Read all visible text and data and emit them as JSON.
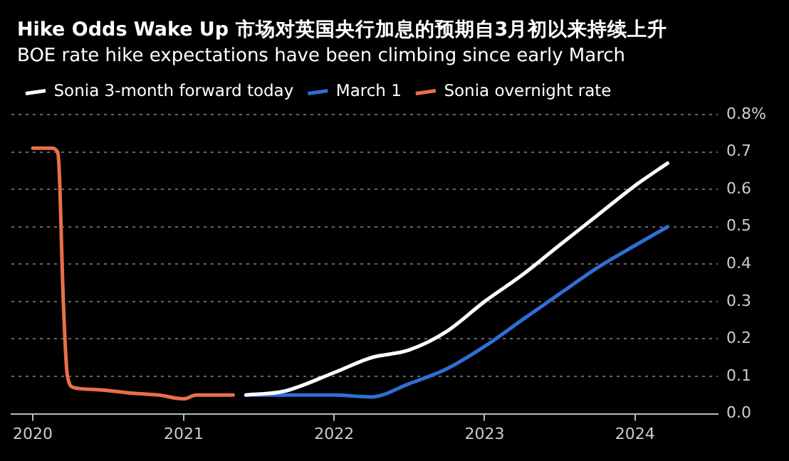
{
  "chart_data": {
    "type": "line",
    "title": "Hike Odds Wake Up 市场对英国央行加息的预期自3月初以来持续上升",
    "subtitle": "BOE rate hike expectations have been climbing since early March",
    "series": [
      {
        "name": "Sonia 3-month forward today",
        "color": "#ffffff",
        "x": [
          "2021-06",
          "2021-09",
          "2022-01",
          "2022-04",
          "2022-07",
          "2022-10",
          "2023-01",
          "2023-04",
          "2023-07",
          "2023-10",
          "2024-01",
          "2024-03-20"
        ],
        "values": [
          0.05,
          0.06,
          0.11,
          0.15,
          0.17,
          0.22,
          0.3,
          0.37,
          0.45,
          0.53,
          0.61,
          0.67
        ]
      },
      {
        "name": "March 1",
        "color": "#2f6fd6",
        "x": [
          "2021-06",
          "2022-01",
          "2022-04",
          "2022-07",
          "2022-10",
          "2023-01",
          "2023-04",
          "2023-07",
          "2023-10",
          "2024-01",
          "2024-03-20"
        ],
        "values": [
          0.05,
          0.05,
          0.045,
          0.08,
          0.12,
          0.18,
          0.25,
          0.32,
          0.39,
          0.45,
          0.5
        ]
      },
      {
        "name": "Sonia overnight rate",
        "color": "#e8704a",
        "x": [
          "2020-01-01",
          "2020-02-15",
          "2020-03-01",
          "2020-03-05",
          "2020-03-15",
          "2020-03-25",
          "2020-04-10",
          "2020-06-01",
          "2020-09-01",
          "2020-11-01",
          "2021-01-01",
          "2021-02-01",
          "2021-05-01"
        ],
        "values": [
          0.71,
          0.71,
          0.7,
          0.65,
          0.3,
          0.1,
          0.07,
          0.065,
          0.055,
          0.05,
          0.04,
          0.05,
          0.05
        ]
      }
    ],
    "xlim": [
      "2019-11-10",
      "2024-07-20"
    ],
    "xticks": [
      "2020",
      "2021",
      "2022",
      "2023",
      "2024"
    ],
    "ylim": [
      0,
      0.8
    ],
    "yticks": [
      {
        "value": 0,
        "label": "0.0"
      },
      0.1,
      0.2,
      0.3,
      0.4,
      0.5,
      0.6,
      0.7,
      {
        "value": 0.8,
        "label": "0.8%"
      }
    ],
    "grid": "y",
    "legend": "top left",
    "marker": "none",
    "line_style": "solid"
  }
}
